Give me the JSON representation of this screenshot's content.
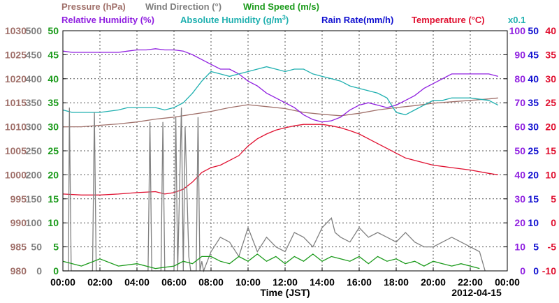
{
  "chart_data": {
    "type": "line",
    "xlabel": "Time (JST)",
    "date_label": "2012-04-15",
    "x_ticks": [
      "00:00",
      "02:00",
      "04:00",
      "06:00",
      "08:00",
      "10:00",
      "12:00",
      "14:00",
      "16:00",
      "18:00",
      "20:00",
      "22:00",
      "00:00"
    ],
    "xlim_hours": [
      0,
      24
    ],
    "header": {
      "pressure": "Pressure (hPa)",
      "wind_direction": "Wind Direction (°)",
      "wind_speed": "Wind Speed (m/s)",
      "relative_humidity": "Relative Humidity (%)",
      "absolute_humidity_pre": "Absolute Humidity (g/m",
      "absolute_humidity_sup": "3",
      "absolute_humidity_post": ")",
      "rain_rate": "Rain Rate(mm/h)",
      "temperature": "Temperature (°C)",
      "rain_scale": "x0.1"
    },
    "axes": {
      "pressure": {
        "color": "#a0706a",
        "ticks": [
          "1030",
          "1025",
          "1020",
          "1015",
          "1010",
          "1005",
          "1000",
          "995",
          "990",
          "985",
          "980"
        ],
        "ylim": [
          980,
          1030
        ]
      },
      "wind_direction": {
        "color": "#808080",
        "ticks": [
          "500",
          "450",
          "400",
          "350",
          "300",
          "250",
          "200",
          "150",
          "100",
          "50",
          "0"
        ],
        "ylim": [
          0,
          500
        ]
      },
      "wind_speed": {
        "color": "#1a9a1a",
        "ticks": [
          "50",
          "45",
          "40",
          "35",
          "30",
          "25",
          "20",
          "15",
          "10",
          "5",
          "0"
        ],
        "ylim": [
          0,
          50
        ]
      },
      "relative_humidity": {
        "color": "#9020e0",
        "ticks": [
          "100",
          "90",
          "80",
          "70",
          "60",
          "50",
          "40",
          "30",
          "20",
          "10",
          "0"
        ],
        "ylim": [
          0,
          100
        ]
      },
      "rain_rate": {
        "color": "#1010d0",
        "ticks": [
          "50",
          "45",
          "40",
          "35",
          "30",
          "25",
          "20",
          "15",
          "10",
          "5",
          "0"
        ],
        "ylim": [
          0,
          50
        ]
      },
      "temperature": {
        "color": "#e01030",
        "ticks": [
          "40",
          "35",
          "30",
          "25",
          "20",
          "15",
          "10",
          "5",
          "0",
          "-5",
          "-10"
        ],
        "ylim": [
          -10,
          40
        ]
      }
    },
    "series": [
      {
        "name": "Pressure (hPa)",
        "color": "#a0706a",
        "axis": "pressure",
        "x": [
          0,
          1,
          2,
          3,
          4,
          5,
          6,
          7,
          8,
          9,
          10,
          11,
          12,
          13,
          14,
          15,
          16,
          17,
          18,
          19,
          20,
          21,
          22,
          23,
          23.5
        ],
        "y": [
          1010,
          1010,
          1010.3,
          1010.6,
          1011,
          1011.6,
          1012,
          1012.6,
          1013.2,
          1014,
          1014.6,
          1014.2,
          1013.8,
          1013,
          1012.6,
          1012.3,
          1012.8,
          1013.5,
          1014,
          1014.4,
          1014.9,
          1015.2,
          1015.5,
          1015.8,
          1016
        ]
      },
      {
        "name": "Relative Humidity (%)",
        "color": "#9020e0",
        "axis": "relative_humidity",
        "x": [
          0,
          0.5,
          1,
          2,
          3,
          3.5,
          4,
          4.5,
          5,
          5.5,
          6,
          6.5,
          7,
          7.5,
          8,
          8.5,
          9,
          9.5,
          10,
          10.5,
          11,
          11.5,
          12,
          12.5,
          13,
          13.5,
          14,
          14.5,
          15,
          15.5,
          16,
          16.5,
          17,
          17.5,
          18,
          18.5,
          19,
          19.5,
          20,
          20.5,
          21,
          22,
          23,
          23.5
        ],
        "y": [
          91.5,
          91,
          91,
          91,
          91,
          91.5,
          92,
          92,
          92.5,
          92,
          92,
          91.5,
          90,
          88,
          86,
          84,
          84,
          82,
          79,
          77,
          74,
          72,
          70,
          68,
          65,
          63,
          62,
          62.5,
          64,
          67,
          69,
          70,
          69,
          68,
          69,
          71,
          73,
          76,
          78,
          80,
          82,
          82,
          82,
          81
        ]
      },
      {
        "name": "Absolute Humidity (g/m3)",
        "color": "#20b0b0",
        "axis": "wind_speed",
        "x": [
          0,
          0.5,
          1,
          2,
          3,
          3.5,
          4,
          4.5,
          5,
          5.5,
          6,
          6.5,
          7,
          7.5,
          8,
          8.5,
          9,
          9.5,
          10,
          10.5,
          11,
          11.5,
          12,
          12.5,
          13,
          13.5,
          14,
          14.5,
          15,
          15.5,
          16,
          16.5,
          17,
          17.5,
          18,
          18.5,
          19,
          19.5,
          20,
          20.5,
          21,
          22,
          23,
          23.5
        ],
        "y": [
          33.5,
          33,
          33,
          33,
          33.5,
          34,
          34,
          34,
          34,
          33.5,
          34,
          35,
          37,
          39.5,
          41.5,
          41,
          40.5,
          41,
          41.5,
          42,
          42.5,
          42,
          41.5,
          42,
          42,
          41,
          40.5,
          40,
          39.5,
          38.5,
          38,
          37.5,
          37,
          36,
          33,
          32.5,
          33.5,
          34.5,
          35.5,
          35.5,
          36,
          36,
          35.5,
          34.5
        ]
      },
      {
        "name": "Temperature (°C)",
        "color": "#e01030",
        "axis": "temperature",
        "x": [
          0,
          1,
          2,
          3,
          4,
          5,
          5.5,
          6,
          6.5,
          7,
          7.5,
          8,
          8.5,
          9,
          9.5,
          10,
          10.5,
          11,
          11.5,
          12,
          12.5,
          13,
          13.5,
          14,
          14.5,
          15,
          15.5,
          16,
          16.5,
          17,
          17.5,
          18,
          18.5,
          19,
          20,
          21,
          22,
          23,
          23.5
        ],
        "y": [
          6,
          5.8,
          5.8,
          6,
          6.3,
          6.5,
          6,
          6.3,
          7,
          8.5,
          10.5,
          11.5,
          12,
          13,
          14,
          16,
          17.5,
          18.5,
          19.3,
          19.8,
          20.2,
          20.5,
          20.5,
          20.5,
          20.2,
          19.8,
          19.2,
          18.5,
          17.5,
          16.5,
          15.5,
          14.5,
          13.5,
          13,
          12,
          11.5,
          11,
          10.3,
          10
        ]
      },
      {
        "name": "Wind Direction (°)",
        "color": "#808080",
        "axis": "wind_direction",
        "x": [
          0,
          0.3,
          0.35,
          0.45,
          0.5,
          1,
          1.6,
          1.7,
          1.8,
          2,
          3,
          4,
          4.6,
          4.7,
          4.8,
          5,
          5.3,
          5.4,
          5.5,
          6,
          6.1,
          6.2,
          6.4,
          6.5,
          6.6,
          6.8,
          6.9,
          7.2,
          7.3,
          7.4,
          7.5,
          7.6,
          8,
          8.5,
          9,
          9.5,
          10,
          10.5,
          11,
          11.5,
          12,
          12.5,
          13,
          13.5,
          14,
          14.5,
          14.7,
          15,
          15.5,
          16,
          16.5,
          17,
          17.5,
          18,
          18.5,
          19,
          19.5,
          20,
          20.5,
          21,
          21.5,
          22,
          22.5,
          22.8
        ],
        "y": [
          0,
          0,
          340,
          0,
          0,
          0,
          0,
          330,
          0,
          0,
          0,
          0,
          0,
          310,
          0,
          0,
          0,
          310,
          0,
          0,
          320,
          0,
          340,
          0,
          300,
          30,
          0,
          0,
          320,
          0,
          20,
          0,
          40,
          70,
          60,
          30,
          90,
          40,
          70,
          50,
          40,
          80,
          70,
          50,
          90,
          110,
          80,
          70,
          60,
          90,
          70,
          80,
          70,
          60,
          80,
          60,
          50,
          50,
          60,
          70,
          60,
          50,
          40,
          0
        ]
      },
      {
        "name": "Wind Speed (m/s)",
        "color": "#1a9a1a",
        "axis": "wind_speed",
        "x": [
          0,
          1,
          2,
          3,
          4,
          5,
          6,
          6.5,
          7,
          7.5,
          8,
          8.5,
          9,
          9.5,
          10,
          10.5,
          11,
          11.5,
          12,
          12.5,
          13,
          13.5,
          14,
          14.5,
          15,
          15.5,
          16,
          16.5,
          17,
          17.5,
          18,
          18.5,
          19,
          19.5,
          20,
          20.5,
          21,
          21.5,
          22,
          22.5
        ],
        "y": [
          2,
          1,
          2.5,
          1,
          1.5,
          0.5,
          1,
          2,
          1.5,
          3,
          3,
          2,
          1.5,
          3,
          2,
          3.5,
          2,
          3,
          1.5,
          3,
          2,
          3.5,
          2,
          3,
          2.5,
          2,
          3,
          1.5,
          3,
          2,
          2.5,
          1.5,
          2,
          1,
          2,
          1.5,
          1,
          1.5,
          1,
          0.5
        ]
      }
    ]
  }
}
